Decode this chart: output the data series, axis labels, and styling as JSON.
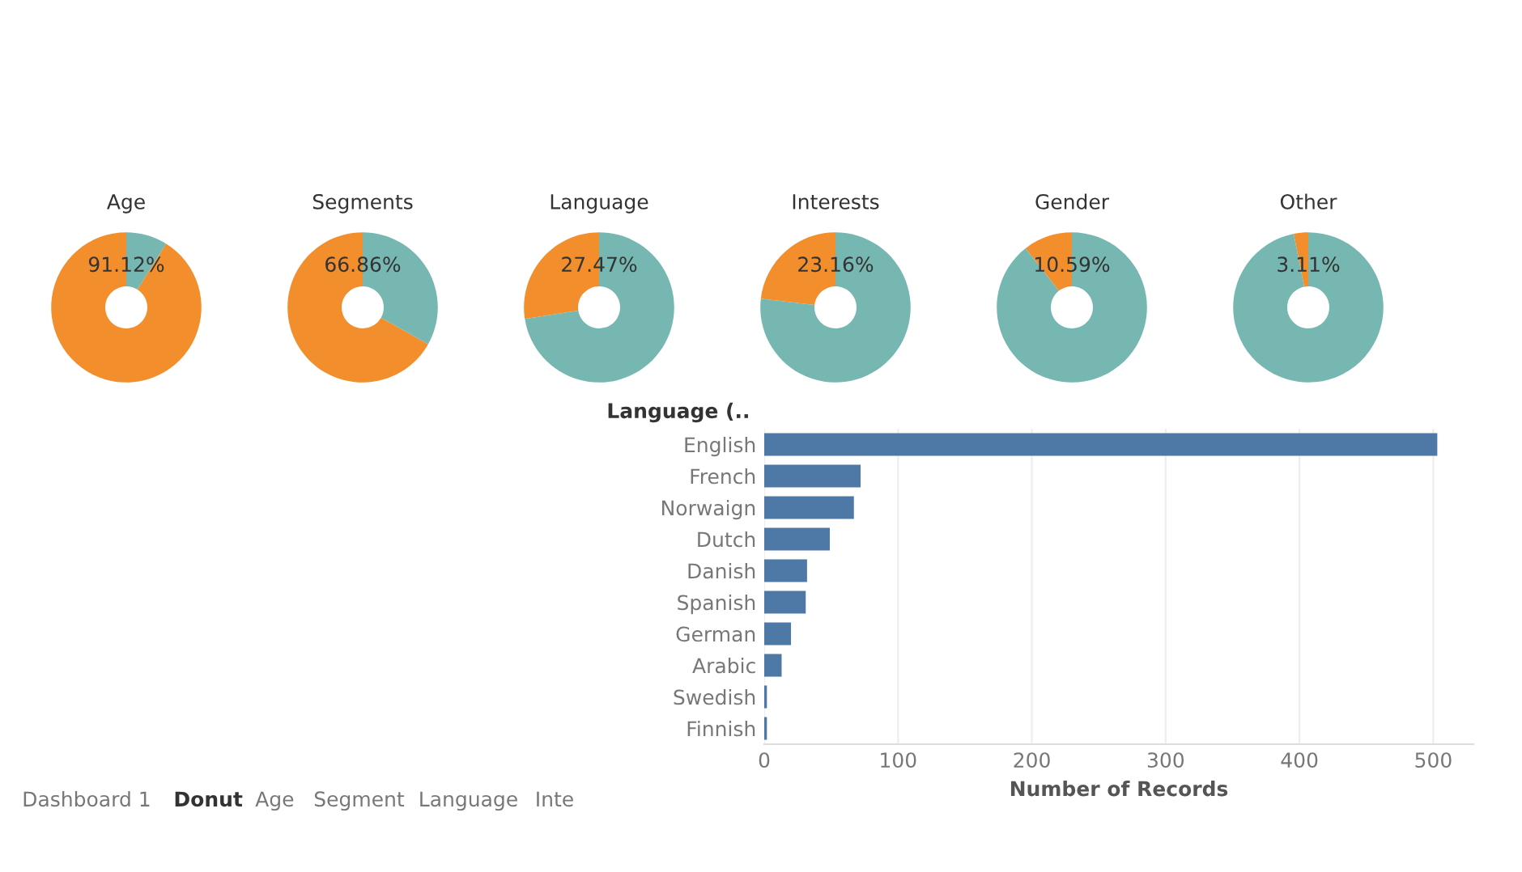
{
  "chart_data": [
    {
      "type": "donut",
      "title": "Age",
      "categories": [
        null,
        null
      ],
      "values": [
        91.12,
        8.88
      ],
      "colors": [
        "#f28e2b",
        "#76b7b2"
      ],
      "value_labels": [
        "91.12%",
        null
      ]
    },
    {
      "type": "donut",
      "title": "Segments",
      "categories": [
        null,
        null
      ],
      "values": [
        66.86,
        33.14
      ],
      "colors": [
        "#f28e2b",
        "#76b7b2"
      ],
      "value_labels": [
        "66.86%",
        null
      ]
    },
    {
      "type": "donut",
      "title": "Language",
      "categories": [
        null,
        null
      ],
      "values": [
        27.47,
        72.53
      ],
      "colors": [
        "#f28e2b",
        "#76b7b2"
      ],
      "value_labels": [
        "27.47%",
        null
      ]
    },
    {
      "type": "donut",
      "title": "Interests",
      "categories": [
        null,
        null
      ],
      "values": [
        23.16,
        76.84
      ],
      "colors": [
        "#f28e2b",
        "#76b7b2"
      ],
      "value_labels": [
        "23.16%",
        null
      ]
    },
    {
      "type": "donut",
      "title": "Gender",
      "categories": [
        null,
        null
      ],
      "values": [
        10.59,
        89.41
      ],
      "colors": [
        "#f28e2b",
        "#76b7b2"
      ],
      "value_labels": [
        "10.59%",
        null
      ]
    },
    {
      "type": "donut",
      "title": "Other",
      "categories": [
        null,
        null
      ],
      "values": [
        3.11,
        96.89
      ],
      "colors": [
        "#f28e2b",
        "#76b7b2"
      ],
      "value_labels": [
        "3.11%",
        null
      ]
    },
    {
      "type": "bar",
      "orientation": "horizontal",
      "ylabel": "Language (..",
      "xlabel": "Number of Records",
      "categories": [
        "English",
        "French",
        "Norwaign",
        "Dutch",
        "Danish",
        "Spanish",
        "German",
        "Arabic",
        "Swedish",
        "Finnish"
      ],
      "values": [
        503,
        72,
        67,
        49,
        32,
        31,
        20,
        13,
        2,
        2
      ],
      "color": "#4e79a7",
      "xlim": [
        0,
        530
      ],
      "xticks": [
        0,
        100,
        200,
        300,
        400,
        500
      ],
      "grid": "x"
    },
    {
      "type": "other",
      "annotations": [
        "Dashboard 1",
        "Donut",
        "Age",
        "Segment",
        "Language",
        "Inte"
      ]
    }
  ]
}
